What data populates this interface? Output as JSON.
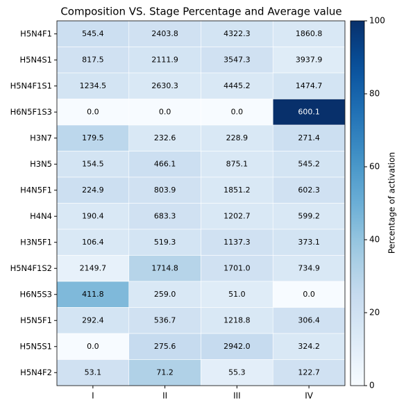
{
  "chart_data": {
    "type": "heatmap",
    "title": "Composition VS. Stage Percentage and Average value",
    "rows": [
      "H5N4F1",
      "H5N4S1",
      "H5N4F1S1",
      "H6N5F1S3",
      "H3N7",
      "H3N5",
      "H4N5F1",
      "H4N4",
      "H3N5F1",
      "H5N4F1S2",
      "H6N5S3",
      "H5N5F1",
      "H5N5S1",
      "H5N4F2"
    ],
    "columns": [
      "I",
      "II",
      "III",
      "IV"
    ],
    "values": [
      [
        22,
        20,
        18,
        15
      ],
      [
        20,
        18,
        20,
        12
      ],
      [
        18,
        15,
        15,
        18
      ],
      [
        0,
        0,
        0,
        100
      ],
      [
        28,
        15,
        15,
        22
      ],
      [
        18,
        22,
        15,
        18
      ],
      [
        22,
        20,
        15,
        20
      ],
      [
        15,
        20,
        15,
        15
      ],
      [
        15,
        18,
        20,
        18
      ],
      [
        8,
        30,
        20,
        15
      ],
      [
        45,
        15,
        12,
        0
      ],
      [
        18,
        20,
        15,
        20
      ],
      [
        0,
        25,
        25,
        15
      ],
      [
        20,
        32,
        10,
        20
      ]
    ],
    "annotations": [
      [
        "545.4",
        "2403.8",
        "4322.3",
        "1860.8"
      ],
      [
        "817.5",
        "2111.9",
        "3547.3",
        "3937.9"
      ],
      [
        "1234.5",
        "2630.3",
        "4445.2",
        "1474.7"
      ],
      [
        "0.0",
        "0.0",
        "0.0",
        "600.1"
      ],
      [
        "179.5",
        "232.6",
        "228.9",
        "271.4"
      ],
      [
        "154.5",
        "466.1",
        "875.1",
        "545.2"
      ],
      [
        "224.9",
        "803.9",
        "1851.2",
        "602.3"
      ],
      [
        "190.4",
        "683.3",
        "1202.7",
        "599.2"
      ],
      [
        "106.4",
        "519.3",
        "1137.3",
        "373.1"
      ],
      [
        "2149.7",
        "1714.8",
        "1701.0",
        "734.9"
      ],
      [
        "411.8",
        "259.0",
        "51.0",
        "0.0"
      ],
      [
        "292.4",
        "536.7",
        "1218.8",
        "306.4"
      ],
      [
        "0.0",
        "275.6",
        "2942.0",
        "324.2"
      ],
      [
        "53.1",
        "71.2",
        "55.3",
        "122.7"
      ]
    ],
    "colormap": "Blues",
    "clim": [
      0,
      100
    ],
    "cticks": [
      0,
      20,
      40,
      60,
      80,
      100
    ],
    "colorbar_label": "Percentage of activation"
  }
}
